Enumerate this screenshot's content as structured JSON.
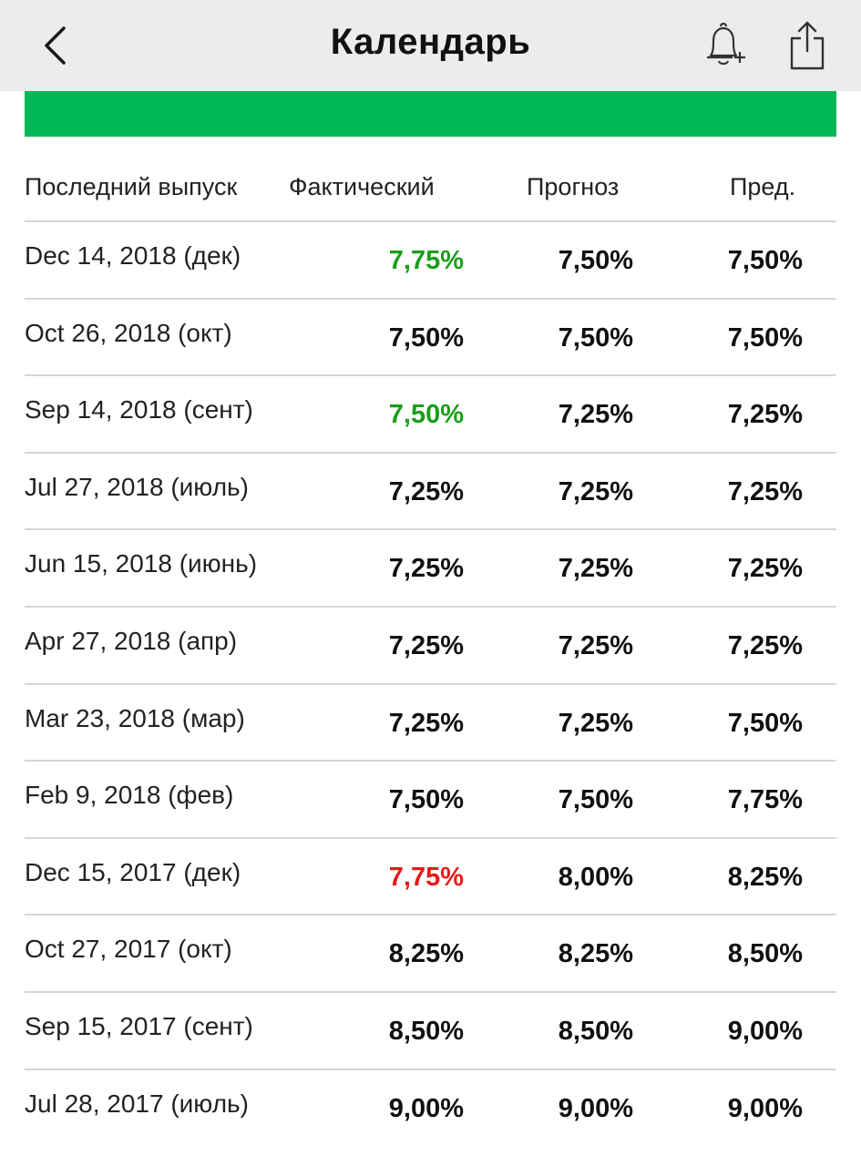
{
  "header": {
    "title": "Календарь",
    "back_icon": "chevron-left-icon",
    "alert_icon": "bell-plus-icon",
    "share_icon": "share-icon"
  },
  "colors": {
    "accent_green": "#00b956",
    "up": "#1a9e1a",
    "down": "#e81919",
    "neutral": "#111111"
  },
  "table": {
    "columns": [
      "Последний выпуск",
      "Фактический",
      "Прогноз",
      "Пред."
    ],
    "rows": [
      {
        "date": "Dec 14, 2018 (дек)",
        "actual": "7,75%",
        "forecast": "7,50%",
        "previous": "7,50%",
        "trend": "up"
      },
      {
        "date": "Oct 26, 2018 (окт)",
        "actual": "7,50%",
        "forecast": "7,50%",
        "previous": "7,50%",
        "trend": "neutral"
      },
      {
        "date": "Sep 14, 2018 (сент)",
        "actual": "7,50%",
        "forecast": "7,25%",
        "previous": "7,25%",
        "trend": "up"
      },
      {
        "date": "Jul 27, 2018 (июль)",
        "actual": "7,25%",
        "forecast": "7,25%",
        "previous": "7,25%",
        "trend": "neutral"
      },
      {
        "date": "Jun 15, 2018 (июнь)",
        "actual": "7,25%",
        "forecast": "7,25%",
        "previous": "7,25%",
        "trend": "neutral"
      },
      {
        "date": "Apr 27, 2018 (апр)",
        "actual": "7,25%",
        "forecast": "7,25%",
        "previous": "7,25%",
        "trend": "neutral"
      },
      {
        "date": "Mar 23, 2018 (мар)",
        "actual": "7,25%",
        "forecast": "7,25%",
        "previous": "7,50%",
        "trend": "neutral"
      },
      {
        "date": "Feb 9, 2018 (фев)",
        "actual": "7,50%",
        "forecast": "7,50%",
        "previous": "7,75%",
        "trend": "neutral"
      },
      {
        "date": "Dec 15, 2017 (дек)",
        "actual": "7,75%",
        "forecast": "8,00%",
        "previous": "8,25%",
        "trend": "down"
      },
      {
        "date": "Oct 27, 2017 (окт)",
        "actual": "8,25%",
        "forecast": "8,25%",
        "previous": "8,50%",
        "trend": "neutral"
      },
      {
        "date": "Sep 15, 2017 (сент)",
        "actual": "8,50%",
        "forecast": "8,50%",
        "previous": "9,00%",
        "trend": "neutral"
      },
      {
        "date": "Jul 28, 2017 (июль)",
        "actual": "9,00%",
        "forecast": "9,00%",
        "previous": "9,00%",
        "trend": "neutral"
      }
    ]
  }
}
